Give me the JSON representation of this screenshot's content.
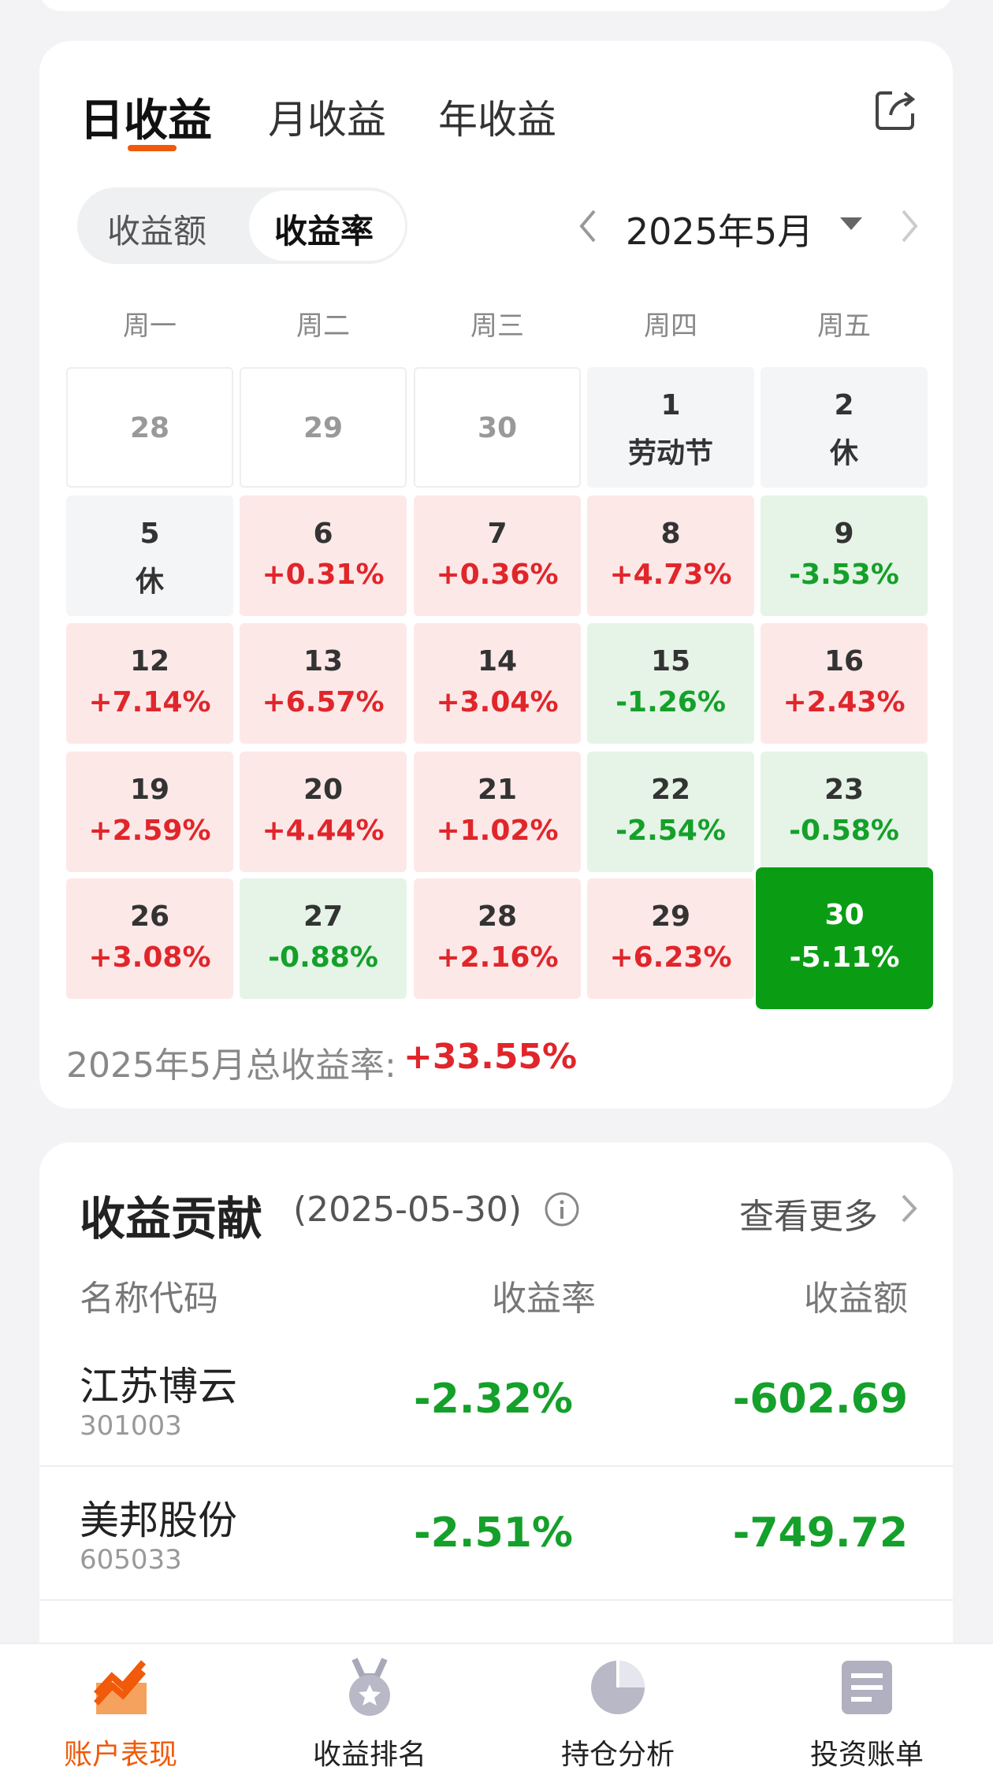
{
  "tabs": [
    "日收益",
    "月收益",
    "年收益"
  ],
  "toggle": [
    "收益额",
    "收益率"
  ],
  "month": "2025年5月",
  "weekdays": [
    "周一",
    "周二",
    "周三",
    "周四",
    "周五"
  ],
  "calendar": [
    [
      {
        "day": "28"
      },
      {
        "day": "29"
      },
      {
        "day": "30"
      },
      {
        "day": "1",
        "label": "劳动节"
      },
      {
        "day": "2",
        "label": "休"
      }
    ],
    [
      {
        "day": "5",
        "label": "休"
      },
      {
        "day": "6",
        "label": "+0.31%"
      },
      {
        "day": "7",
        "label": "+0.36%"
      },
      {
        "day": "8",
        "label": "+4.73%"
      },
      {
        "day": "9",
        "label": "-3.53%"
      }
    ],
    [
      {
        "day": "12",
        "label": "+7.14%"
      },
      {
        "day": "13",
        "label": "+6.57%"
      },
      {
        "day": "14",
        "label": "+3.04%"
      },
      {
        "day": "15",
        "label": "-1.26%"
      },
      {
        "day": "16",
        "label": "+2.43%"
      }
    ],
    [
      {
        "day": "19",
        "label": "+2.59%"
      },
      {
        "day": "20",
        "label": "+4.44%"
      },
      {
        "day": "21",
        "label": "+1.02%"
      },
      {
        "day": "22",
        "label": "-2.54%"
      },
      {
        "day": "23",
        "label": "-0.58%"
      }
    ],
    [
      {
        "day": "26",
        "label": "+3.08%"
      },
      {
        "day": "27",
        "label": "-0.88%"
      },
      {
        "day": "28",
        "label": "+2.16%"
      },
      {
        "day": "29",
        "label": "+6.23%"
      },
      {
        "day": "30",
        "label": "-5.11%"
      }
    ]
  ],
  "summary": {
    "label": "2025年5月总收益率:",
    "value": "+33.55%"
  },
  "contribution": {
    "title": "收益贡献",
    "date": "(2025-05-30)",
    "more": "查看更多",
    "headers": [
      "名称代码",
      "收益率",
      "收益额"
    ],
    "rows": [
      {
        "name": "江苏博云",
        "code": "301003",
        "rate": "-2.32%",
        "amount": "-602.69"
      },
      {
        "name": "美邦股份",
        "code": "605033",
        "rate": "-2.51%",
        "amount": "-749.72"
      }
    ]
  },
  "nav": [
    "账户表现",
    "收益排名",
    "持仓分析",
    "投资账单"
  ]
}
